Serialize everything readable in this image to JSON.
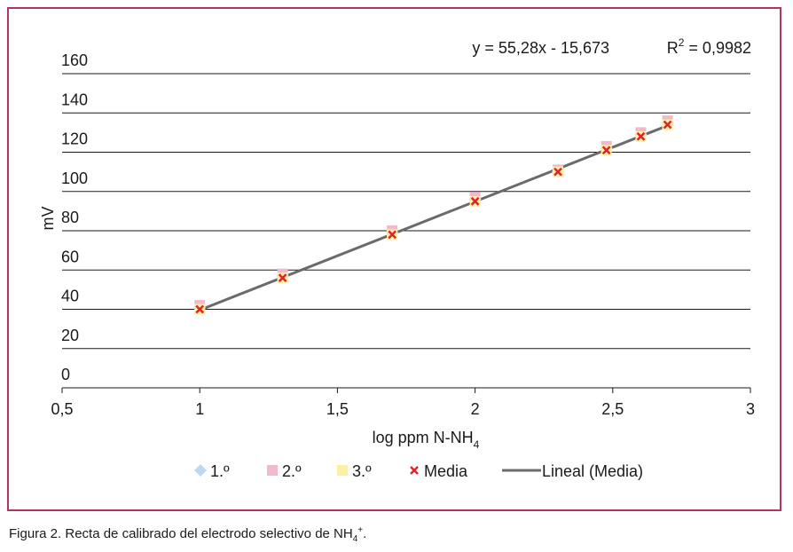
{
  "chart_data": {
    "type": "scatter",
    "xlabel": "log ppm N-NH",
    "xlabel_sub": "4",
    "ylabel": "mV",
    "xlim": [
      0.5,
      3
    ],
    "ylim": [
      0,
      160
    ],
    "x_ticks": [
      0.5,
      1,
      1.5,
      2,
      2.5,
      3
    ],
    "x_tick_labels": [
      "0,5",
      "1",
      "1,5",
      "2",
      "2,5",
      "3"
    ],
    "y_ticks": [
      0,
      20,
      40,
      60,
      80,
      100,
      120,
      140,
      160
    ],
    "y_tick_labels": [
      "0",
      "20",
      "40",
      "60",
      "80",
      "100",
      "120",
      "140",
      "160"
    ],
    "grid": "horizontal",
    "legend_position": "bottom",
    "equation": "y = 55,28x - 15,673",
    "r2_prefix": "R",
    "r2_sup": "2",
    "r2_value": " = 0,9982",
    "x": [
      1.0,
      1.301,
      1.699,
      2.0,
      2.301,
      2.477,
      2.602,
      2.699
    ],
    "series": [
      {
        "name": "1.º",
        "marker": "diamond",
        "color": "#bcd9f2",
        "values": [
          41,
          57,
          79,
          96,
          110,
          122,
          129,
          135
        ]
      },
      {
        "name": "2.º",
        "marker": "square",
        "color": "#f2b8cc",
        "values": [
          42,
          58,
          80,
          97,
          111,
          123,
          130,
          136
        ]
      },
      {
        "name": "3.º",
        "marker": "square",
        "color": "#fbf0a6",
        "values": [
          40,
          56,
          78,
          95,
          110,
          121,
          128,
          134
        ]
      },
      {
        "name": "Media",
        "marker": "x",
        "color": "#e0222b",
        "values": [
          40,
          56,
          78,
          95,
          110,
          121,
          128,
          134
        ]
      },
      {
        "name": "Lineal (Media)",
        "marker": "line",
        "color": "#6b6b6b",
        "fit": {
          "slope": 55.28,
          "intercept": -15.673
        }
      }
    ]
  },
  "caption": {
    "text": "Figura 2. Recta de calibrado del electrodo selectivo de NH",
    "sub": "4",
    "sup": "+",
    "end": "."
  }
}
